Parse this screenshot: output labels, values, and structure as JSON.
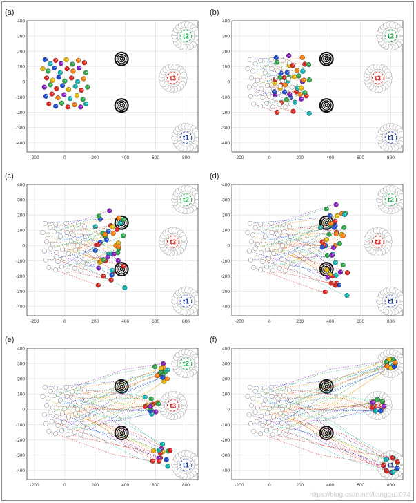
{
  "figure": {
    "watermark": "https://blog.csdn.net/liangqu1074"
  },
  "chart_data": [
    {
      "label": "(a)",
      "type": "scatter",
      "stage": 0,
      "xlim": [
        -250,
        880
      ],
      "ylim": [
        -460,
        400
      ],
      "xticks": [
        "-200",
        "0",
        "200",
        "400",
        "600",
        "800"
      ],
      "yticks": [
        "400",
        "300",
        "200",
        "100",
        "0",
        "-100",
        "-200",
        "-300",
        "-400"
      ],
      "obstacles": [
        {
          "x": 375,
          "y": 150
        },
        {
          "x": 375,
          "y": -155
        }
      ],
      "targets": [
        {
          "name": "t2",
          "x": 800,
          "y": 300,
          "color": "#19a34a"
        },
        {
          "name": "t3",
          "x": 715,
          "y": 25,
          "color": "#e02020"
        },
        {
          "name": "t1",
          "x": 800,
          "y": -365,
          "color": "#203c9c"
        }
      ]
    },
    {
      "label": "(b)",
      "type": "scatter",
      "stage": 0.18,
      "xlim": [
        -250,
        880
      ],
      "ylim": [
        -460,
        400
      ],
      "xticks": [
        "-200",
        "0",
        "200",
        "400",
        "600",
        "800"
      ],
      "yticks": [
        "400",
        "300",
        "200",
        "100",
        "0",
        "-100",
        "-200",
        "-300",
        "-400"
      ],
      "obstacles": [
        {
          "x": 375,
          "y": 150
        },
        {
          "x": 375,
          "y": -155
        }
      ],
      "targets": [
        {
          "name": "t2",
          "x": 800,
          "y": 300,
          "color": "#19a34a"
        },
        {
          "name": "t3",
          "x": 715,
          "y": 25,
          "color": "#e02020"
        },
        {
          "name": "t1",
          "x": 800,
          "y": -365,
          "color": "#203c9c"
        }
      ]
    },
    {
      "label": "(c)",
      "type": "scatter",
      "stage": 0.38,
      "xlim": [
        -250,
        880
      ],
      "ylim": [
        -460,
        400
      ],
      "xticks": [
        "-200",
        "0",
        "200",
        "400",
        "600",
        "800"
      ],
      "yticks": [
        "400",
        "300",
        "200",
        "100",
        "0",
        "-100",
        "-200",
        "-300",
        "-400"
      ],
      "obstacles": [
        {
          "x": 375,
          "y": 150
        },
        {
          "x": 375,
          "y": -155
        }
      ],
      "targets": [
        {
          "name": "t2",
          "x": 800,
          "y": 300,
          "color": "#19a34a"
        },
        {
          "name": "t3",
          "x": 715,
          "y": 25,
          "color": "#e02020"
        },
        {
          "name": "t1",
          "x": 800,
          "y": -365,
          "color": "#203c9c"
        }
      ]
    },
    {
      "label": "(d)",
      "type": "scatter",
      "stage": 0.55,
      "xlim": [
        -250,
        880
      ],
      "ylim": [
        -460,
        400
      ],
      "xticks": [
        "-200",
        "0",
        "200",
        "400",
        "600",
        "800"
      ],
      "yticks": [
        "400",
        "300",
        "200",
        "100",
        "0",
        "-100",
        "-200",
        "-300",
        "-400"
      ],
      "obstacles": [
        {
          "x": 375,
          "y": 150
        },
        {
          "x": 375,
          "y": -155
        }
      ],
      "targets": [
        {
          "name": "t2",
          "x": 800,
          "y": 300,
          "color": "#19a34a"
        },
        {
          "name": "t3",
          "x": 715,
          "y": 25,
          "color": "#e02020"
        },
        {
          "name": "t1",
          "x": 800,
          "y": -365,
          "color": "#203c9c"
        }
      ]
    },
    {
      "label": "(e)",
      "type": "scatter",
      "stage": 0.8,
      "xlim": [
        -250,
        880
      ],
      "ylim": [
        -460,
        400
      ],
      "xticks": [
        "-200",
        "0",
        "200",
        "400",
        "600",
        "800"
      ],
      "yticks": [
        "400",
        "300",
        "200",
        "100",
        "0",
        "-100",
        "-200",
        "-300",
        "-400"
      ],
      "obstacles": [
        {
          "x": 375,
          "y": 150
        },
        {
          "x": 375,
          "y": -155
        }
      ],
      "targets": [
        {
          "name": "t2",
          "x": 800,
          "y": 300,
          "color": "#19a34a"
        },
        {
          "name": "t3",
          "x": 715,
          "y": 25,
          "color": "#e02020"
        },
        {
          "name": "t1",
          "x": 800,
          "y": -365,
          "color": "#203c9c"
        }
      ]
    },
    {
      "label": "(f)",
      "type": "scatter",
      "stage": 1.0,
      "xlim": [
        -250,
        880
      ],
      "ylim": [
        -460,
        400
      ],
      "xticks": [
        "-200",
        "0",
        "200",
        "400",
        "600",
        "800"
      ],
      "yticks": [
        "400",
        "300",
        "200",
        "100",
        "0",
        "-100",
        "-200",
        "-300",
        "-400"
      ],
      "obstacles": [
        {
          "x": 375,
          "y": 150
        },
        {
          "x": 375,
          "y": -155
        }
      ],
      "targets": [
        {
          "name": "t2",
          "x": 800,
          "y": 300,
          "color": "#19a34a"
        },
        {
          "name": "t3",
          "x": 715,
          "y": 25,
          "color": "#e02020"
        },
        {
          "name": "t1",
          "x": 800,
          "y": -365,
          "color": "#203c9c"
        }
      ]
    }
  ],
  "agents": [
    {
      "x": -130,
      "y": 145,
      "c": "#1f4fd6",
      "t": 0
    },
    {
      "x": -95,
      "y": 118,
      "c": "#12b3b3",
      "t": 1
    },
    {
      "x": -60,
      "y": 140,
      "c": "#e0241f",
      "t": 2
    },
    {
      "x": -25,
      "y": 120,
      "c": "#8a1fc2",
      "t": 0
    },
    {
      "x": 10,
      "y": 145,
      "c": "#e6b800",
      "t": 1
    },
    {
      "x": 50,
      "y": 115,
      "c": "#2da84a",
      "t": 2
    },
    {
      "x": 90,
      "y": 140,
      "c": "#ff7f0e",
      "t": 0
    },
    {
      "x": 130,
      "y": 125,
      "c": "#e0241f",
      "t": 1
    },
    {
      "x": -145,
      "y": 85,
      "c": "#e6b800",
      "t": 2
    },
    {
      "x": -110,
      "y": 70,
      "c": "#2da84a",
      "t": 0
    },
    {
      "x": -70,
      "y": 90,
      "c": "#1f4fd6",
      "t": 1
    },
    {
      "x": -30,
      "y": 60,
      "c": "#12b3b3",
      "t": 2
    },
    {
      "x": 15,
      "y": 85,
      "c": "#e0241f",
      "t": 0
    },
    {
      "x": 55,
      "y": 70,
      "c": "#ff7f0e",
      "t": 1
    },
    {
      "x": 95,
      "y": 90,
      "c": "#8a1fc2",
      "t": 2
    },
    {
      "x": 140,
      "y": 60,
      "c": "#2da84a",
      "t": 0
    },
    {
      "x": -120,
      "y": 25,
      "c": "#e0241f",
      "t": 1
    },
    {
      "x": -80,
      "y": 10,
      "c": "#e6b800",
      "t": 2
    },
    {
      "x": -40,
      "y": 30,
      "c": "#1f4fd6",
      "t": 0
    },
    {
      "x": 0,
      "y": 5,
      "c": "#2da84a",
      "t": 1
    },
    {
      "x": 45,
      "y": 25,
      "c": "#e0241f",
      "t": 2
    },
    {
      "x": 85,
      "y": 0,
      "c": "#12b3b3",
      "t": 0
    },
    {
      "x": 125,
      "y": 20,
      "c": "#ff7f0e",
      "t": 1
    },
    {
      "x": -135,
      "y": -35,
      "c": "#8a1fc2",
      "t": 2
    },
    {
      "x": -95,
      "y": -20,
      "c": "#2da84a",
      "t": 0
    },
    {
      "x": -55,
      "y": -45,
      "c": "#e0241f",
      "t": 1
    },
    {
      "x": -15,
      "y": -25,
      "c": "#1f4fd6",
      "t": 2
    },
    {
      "x": 25,
      "y": -50,
      "c": "#e6b800",
      "t": 0
    },
    {
      "x": 70,
      "y": -30,
      "c": "#12b3b3",
      "t": 1
    },
    {
      "x": 110,
      "y": -55,
      "c": "#e0241f",
      "t": 2
    },
    {
      "x": 150,
      "y": -35,
      "c": "#2da84a",
      "t": 0
    },
    {
      "x": -125,
      "y": -95,
      "c": "#1f4fd6",
      "t": 1
    },
    {
      "x": -85,
      "y": -80,
      "c": "#e0241f",
      "t": 2
    },
    {
      "x": -45,
      "y": -105,
      "c": "#ff7f0e",
      "t": 0
    },
    {
      "x": -5,
      "y": -85,
      "c": "#8a1fc2",
      "t": 1
    },
    {
      "x": 35,
      "y": -110,
      "c": "#12b3b3",
      "t": 2
    },
    {
      "x": 80,
      "y": -90,
      "c": "#e6b800",
      "t": 0
    },
    {
      "x": 120,
      "y": -115,
      "c": "#2da84a",
      "t": 1
    },
    {
      "x": -105,
      "y": -145,
      "c": "#e0241f",
      "t": 2
    },
    {
      "x": -60,
      "y": -160,
      "c": "#1f4fd6",
      "t": 0
    },
    {
      "x": -20,
      "y": -140,
      "c": "#2da84a",
      "t": 1
    },
    {
      "x": 20,
      "y": -165,
      "c": "#e0241f",
      "t": 2
    },
    {
      "x": 65,
      "y": -150,
      "c": "#ff7f0e",
      "t": 0
    },
    {
      "x": 105,
      "y": -165,
      "c": "#8a1fc2",
      "t": 1
    },
    {
      "x": 140,
      "y": -145,
      "c": "#12b3b3",
      "t": 2
    }
  ]
}
